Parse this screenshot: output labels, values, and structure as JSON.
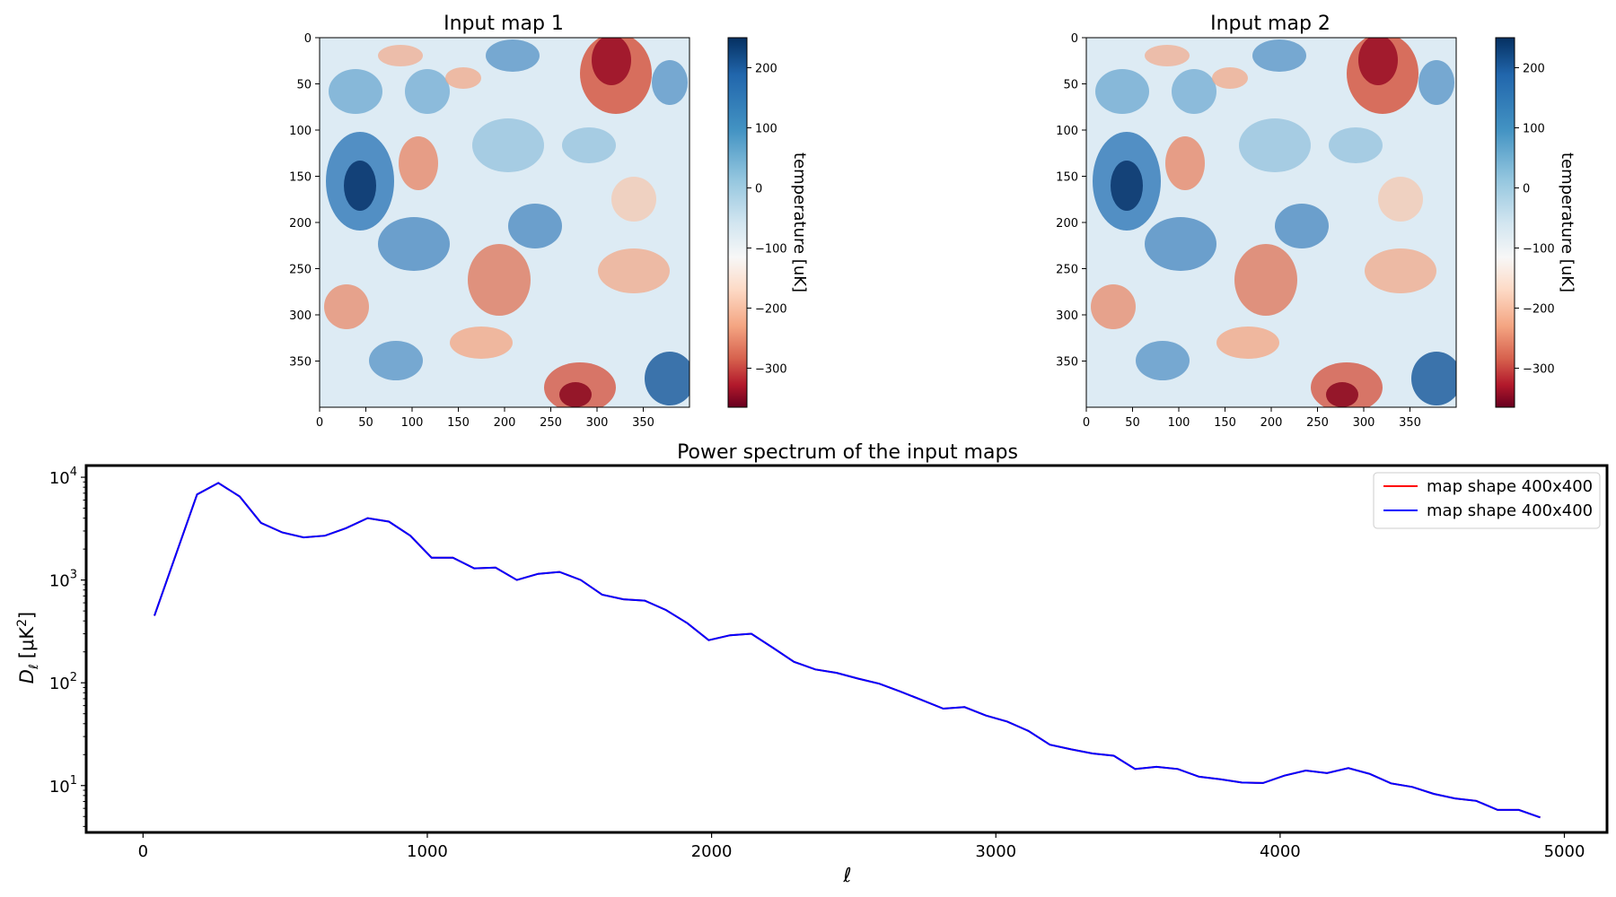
{
  "chart_data": [
    {
      "type": "heatmap",
      "title": "Input map 1",
      "x_ticks": [
        0,
        50,
        100,
        150,
        200,
        250,
        300,
        350
      ],
      "y_ticks": [
        0,
        50,
        100,
        150,
        200,
        250,
        300,
        350
      ],
      "xlim": [
        0,
        400
      ],
      "ylim": [
        0,
        400
      ],
      "colorbar": {
        "label": "temperature [uK]",
        "range": [
          -365,
          250
        ],
        "ticks": [
          200,
          100,
          0,
          -100,
          -200,
          -300
        ],
        "colormap": "RdBu"
      }
    },
    {
      "type": "heatmap",
      "title": "Input map 2",
      "x_ticks": [
        0,
        50,
        100,
        150,
        200,
        250,
        300,
        350
      ],
      "y_ticks": [
        0,
        50,
        100,
        150,
        200,
        250,
        300,
        350
      ],
      "xlim": [
        0,
        400
      ],
      "ylim": [
        0,
        400
      ],
      "colorbar": {
        "label": "temperature [uK]",
        "range": [
          -365,
          250
        ],
        "ticks": [
          200,
          100,
          0,
          -100,
          -200,
          -300
        ],
        "colormap": "RdBu"
      }
    },
    {
      "type": "line",
      "title": "Power spectrum of the input maps",
      "xlabel": "ℓ",
      "ylabel": "D",
      "ylabel_sub": "ℓ",
      "ylabel_unit": "[μK",
      "ylabel_unit_sup": "2",
      "ylabel_unit_end": "]",
      "yscale": "log",
      "xlim": [
        -200,
        5150
      ],
      "ylim": [
        3.5,
        13000
      ],
      "x_ticks": [
        0,
        1000,
        2000,
        3000,
        4000,
        5000
      ],
      "y_ticks": [
        10,
        100,
        1000,
        10000
      ],
      "legend_position": "top-right",
      "series": [
        {
          "name": "map shape 400x400",
          "color": "#ff0000",
          "x": [
            40,
            190,
            265,
            340,
            415,
            490,
            565,
            640,
            715,
            790,
            865,
            940,
            1015,
            1090,
            1165,
            1240,
            1315,
            1390,
            1465,
            1540,
            1615,
            1690,
            1765,
            1840,
            1915,
            1990,
            2065,
            2140,
            2215,
            2290,
            2365,
            2440,
            2515,
            2590,
            2665,
            2740,
            2815,
            2890,
            2965,
            3040,
            3115,
            3190,
            3265,
            3340,
            3415,
            3490,
            3565,
            3640,
            3715,
            3790,
            3865,
            3940,
            4015,
            4090,
            4165,
            4240,
            4315,
            4390,
            4465,
            4540,
            4615,
            4690,
            4765,
            4840,
            4915
          ],
          "y": [
            450,
            6800,
            8800,
            6500,
            3600,
            2900,
            2600,
            2700,
            3200,
            4000,
            3700,
            2700,
            1650,
            1650,
            1300,
            1320,
            1000,
            1150,
            1200,
            1000,
            720,
            650,
            630,
            510,
            380,
            260,
            290,
            300,
            220,
            160,
            135,
            125,
            110,
            98,
            82,
            68,
            56,
            58,
            48,
            42,
            34,
            25,
            22.5,
            20.5,
            19.5,
            14.5,
            15.2,
            14.5,
            12.2,
            11.5,
            10.7,
            10.6,
            12.5,
            14,
            13.2,
            14.8,
            13,
            10.5,
            9.7,
            8.3,
            7.5,
            7.1,
            5.8,
            5.8,
            4.9
          ]
        },
        {
          "name": "map shape 400x400",
          "color": "#0000ff",
          "x": [
            40,
            190,
            265,
            340,
            415,
            490,
            565,
            640,
            715,
            790,
            865,
            940,
            1015,
            1090,
            1165,
            1240,
            1315,
            1390,
            1465,
            1540,
            1615,
            1690,
            1765,
            1840,
            1915,
            1990,
            2065,
            2140,
            2215,
            2290,
            2365,
            2440,
            2515,
            2590,
            2665,
            2740,
            2815,
            2890,
            2965,
            3040,
            3115,
            3190,
            3265,
            3340,
            3415,
            3490,
            3565,
            3640,
            3715,
            3790,
            3865,
            3940,
            4015,
            4090,
            4165,
            4240,
            4315,
            4390,
            4465,
            4540,
            4615,
            4690,
            4765,
            4840,
            4915
          ],
          "y": [
            450,
            6800,
            8800,
            6500,
            3600,
            2900,
            2600,
            2700,
            3200,
            4000,
            3700,
            2700,
            1650,
            1650,
            1300,
            1320,
            1000,
            1150,
            1200,
            1000,
            720,
            650,
            630,
            510,
            380,
            260,
            290,
            300,
            220,
            160,
            135,
            125,
            110,
            98,
            82,
            68,
            56,
            58,
            48,
            42,
            34,
            25,
            22.5,
            20.5,
            19.5,
            14.5,
            15.2,
            14.5,
            12.2,
            11.5,
            10.7,
            10.6,
            12.5,
            14,
            13.2,
            14.8,
            13,
            10.5,
            9.7,
            8.3,
            7.5,
            7.1,
            5.8,
            5.8,
            4.9
          ]
        }
      ]
    }
  ]
}
